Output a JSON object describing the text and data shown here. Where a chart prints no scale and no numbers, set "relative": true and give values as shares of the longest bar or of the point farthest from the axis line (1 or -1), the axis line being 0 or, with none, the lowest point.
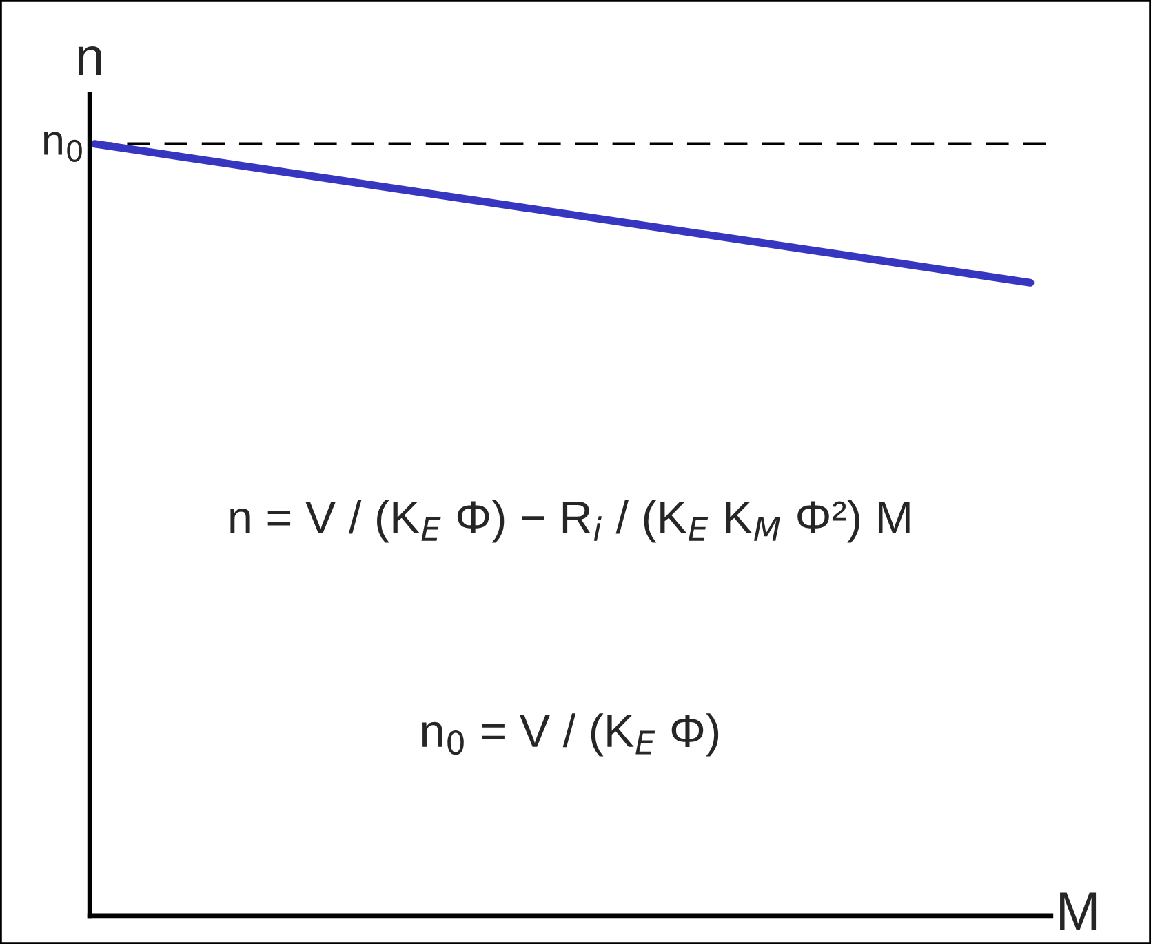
{
  "chart_data": {
    "type": "line",
    "relative": true,
    "xlabel": "M",
    "ylabel": "n",
    "categories": [
      null,
      null
    ],
    "series": [
      {
        "color": "#3636c0",
        "values": [
          1,
          0.82
        ]
      }
    ],
    "ref_lines": [
      {
        "axis": "y",
        "value": 1,
        "label": "n$_{0}$",
        "line_style": "dashed",
        "color": "#000000"
      }
    ],
    "annotations": [
      "n = V / (K$_{E}$ Φ) − R$_{i}$ / (K$_{E}$ K$_{M}$ Φ²) M",
      "n$_{0}$ = V / (K$_{E}$ Φ)"
    ],
    "line_style": "solid"
  }
}
